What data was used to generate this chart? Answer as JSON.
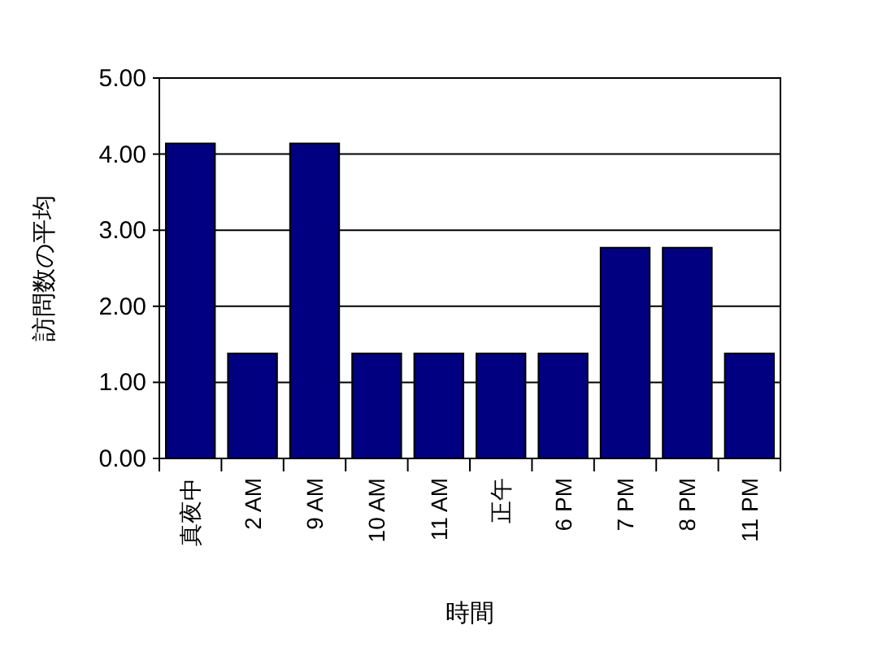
{
  "chart_data": {
    "type": "bar",
    "xlabel": "時間",
    "ylabel": "訪問数の平均",
    "categories": [
      "真夜中",
      "2 AM",
      "9 AM",
      "10 AM",
      "11 AM",
      "正午",
      "6 PM",
      "7 PM",
      "8 PM",
      "11 PM"
    ],
    "values": [
      4.14,
      1.38,
      4.14,
      1.38,
      1.38,
      1.38,
      1.38,
      2.77,
      2.77,
      1.38
    ],
    "color": "#000080",
    "ylim": [
      0,
      5
    ],
    "yticks": [
      {
        "value": 0,
        "label": "0.00"
      },
      {
        "value": 1,
        "label": "1.00"
      },
      {
        "value": 2,
        "label": "2.00"
      },
      {
        "value": 3,
        "label": "3.00"
      },
      {
        "value": 4,
        "label": "4.00"
      },
      {
        "value": 5,
        "label": "5.00"
      }
    ],
    "grid": "y"
  }
}
